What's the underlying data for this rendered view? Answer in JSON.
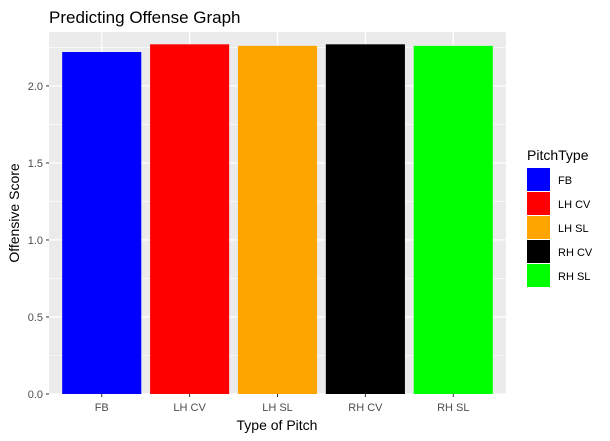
{
  "chart_data": {
    "type": "bar",
    "title": "Predicting Offense Graph",
    "xlabel": "Type of Pitch",
    "ylabel": "Offensive Score",
    "categories": [
      "FB",
      "LH CV",
      "LH SL",
      "RH CV",
      "RH SL"
    ],
    "values": [
      2.22,
      2.27,
      2.26,
      2.27,
      2.26
    ],
    "colors": [
      "#0000FF",
      "#FF0000",
      "#FFA500",
      "#000000",
      "#00FF00"
    ],
    "ylim": [
      0,
      2.35
    ],
    "yticks": [
      0.0,
      0.5,
      1.0,
      1.5,
      2.0
    ],
    "ytick_labels": [
      "0.0",
      "0.5",
      "1.0",
      "1.5",
      "2.0"
    ],
    "grid": true,
    "panel_background": "#EBEBEB",
    "gridline_color": "#FFFFFF",
    "legend": {
      "title": "PitchType",
      "placement": "right",
      "entries": [
        "FB",
        "LH CV",
        "LH SL",
        "RH CV",
        "RH SL"
      ]
    }
  }
}
